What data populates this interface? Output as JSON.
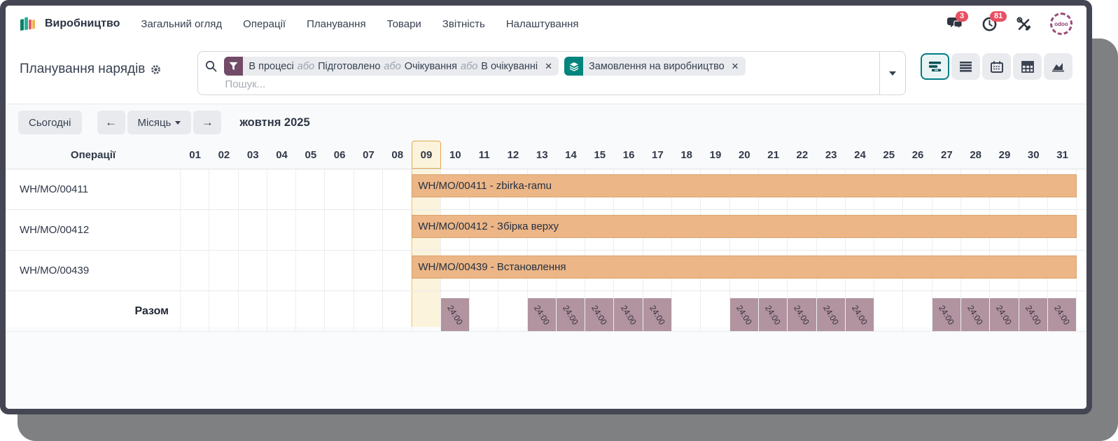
{
  "app": {
    "name": "Виробництво",
    "menu": [
      "Загальний огляд",
      "Операції",
      "Планування",
      "Товари",
      "Звітність",
      "Налаштування"
    ]
  },
  "topbar": {
    "chat_badge": "3",
    "activity_badge": "81",
    "avatar_label": "odoo"
  },
  "page": {
    "title": "Планування нарядів"
  },
  "search": {
    "placeholder": "Пошук...",
    "filter_status": {
      "parts": [
        "В процесі",
        "або",
        "Підготовлено",
        "або",
        "Очікування",
        "або",
        "В очікуванні"
      ]
    },
    "filter_group": {
      "label": "Замовлення на виробництво"
    }
  },
  "view_switcher": {
    "active": "gantt",
    "views": [
      "gantt",
      "list",
      "calendar",
      "pivot",
      "graph"
    ]
  },
  "toolbar": {
    "today_label": "Сьогодні",
    "scale_label": "Місяць",
    "prev_label": "←",
    "next_label": "→",
    "period_label": "жовтня 2025"
  },
  "gantt": {
    "first_column_header": "Операції",
    "days": [
      "01",
      "02",
      "03",
      "04",
      "05",
      "06",
      "07",
      "08",
      "09",
      "10",
      "11",
      "12",
      "13",
      "14",
      "15",
      "16",
      "17",
      "18",
      "19",
      "20",
      "21",
      "22",
      "23",
      "24",
      "25",
      "26",
      "27",
      "28",
      "29",
      "30",
      "31"
    ],
    "today": "09",
    "rows": [
      {
        "label": "WH/MO/00411",
        "bar_label": "WH/MO/00411 - zbirka-ramu",
        "start": 9,
        "end": 31
      },
      {
        "label": "WH/MO/00412",
        "bar_label": "WH/MO/00412 - Збірка верху",
        "start": 9,
        "end": 31
      },
      {
        "label": "WH/MO/00439",
        "bar_label": "WH/MO/00439 - Встановлення",
        "start": 9,
        "end": 31
      }
    ],
    "total_label": "Разом",
    "totals": {
      "10": "24:00",
      "13": "24:00",
      "14": "24:00",
      "15": "24:00",
      "16": "24:00",
      "17": "24:00",
      "20": "24:00",
      "21": "24:00",
      "22": "24:00",
      "23": "24:00",
      "24": "24:00",
      "27": "24:00",
      "28": "24:00",
      "29": "24:00",
      "30": "24:00",
      "31": "24:00"
    }
  },
  "colors": {
    "brand_plum": "#714B67",
    "brand_teal": "#017E84",
    "bar": "#ECB687",
    "total_cell": "#B1949F",
    "today_highlight": "#FCF3DC",
    "badge": "#E85062",
    "window_frame": "#454653",
    "backdrop": "#7F8082"
  }
}
